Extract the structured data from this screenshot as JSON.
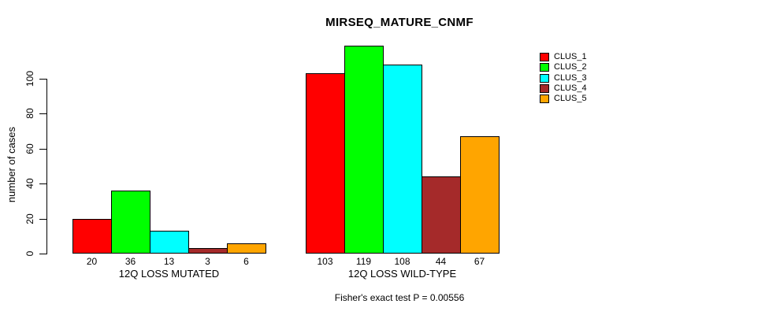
{
  "chart_data": {
    "type": "bar",
    "title": "MIRSEQ_MATURE_CNMF",
    "ylabel": "number of cases",
    "xlabel": "",
    "yticks": [
      0,
      20,
      40,
      60,
      80,
      100
    ],
    "ylim": [
      0,
      122
    ],
    "grid": false,
    "legend_position": "top-right-outside-bars",
    "series_labels": [
      "CLUS_1",
      "CLUS_2",
      "CLUS_3",
      "CLUS_4",
      "CLUS_5"
    ],
    "colors": [
      "#FF0000",
      "#00FF00",
      "#00FFFF",
      "#A52A2A",
      "#FFA500"
    ],
    "groups": [
      {
        "label": "12Q LOSS MUTATED",
        "values": [
          20,
          36,
          13,
          3,
          6
        ]
      },
      {
        "label": "12Q LOSS WILD-TYPE",
        "values": [
          103,
          119,
          108,
          44,
          67
        ]
      }
    ],
    "bar_value_labels_shown": true,
    "annotation": "Fisher's exact test P = 0.00556"
  },
  "colors": {
    "axis": "#000000",
    "background": "#FFFFFF",
    "text": "#000000"
  }
}
